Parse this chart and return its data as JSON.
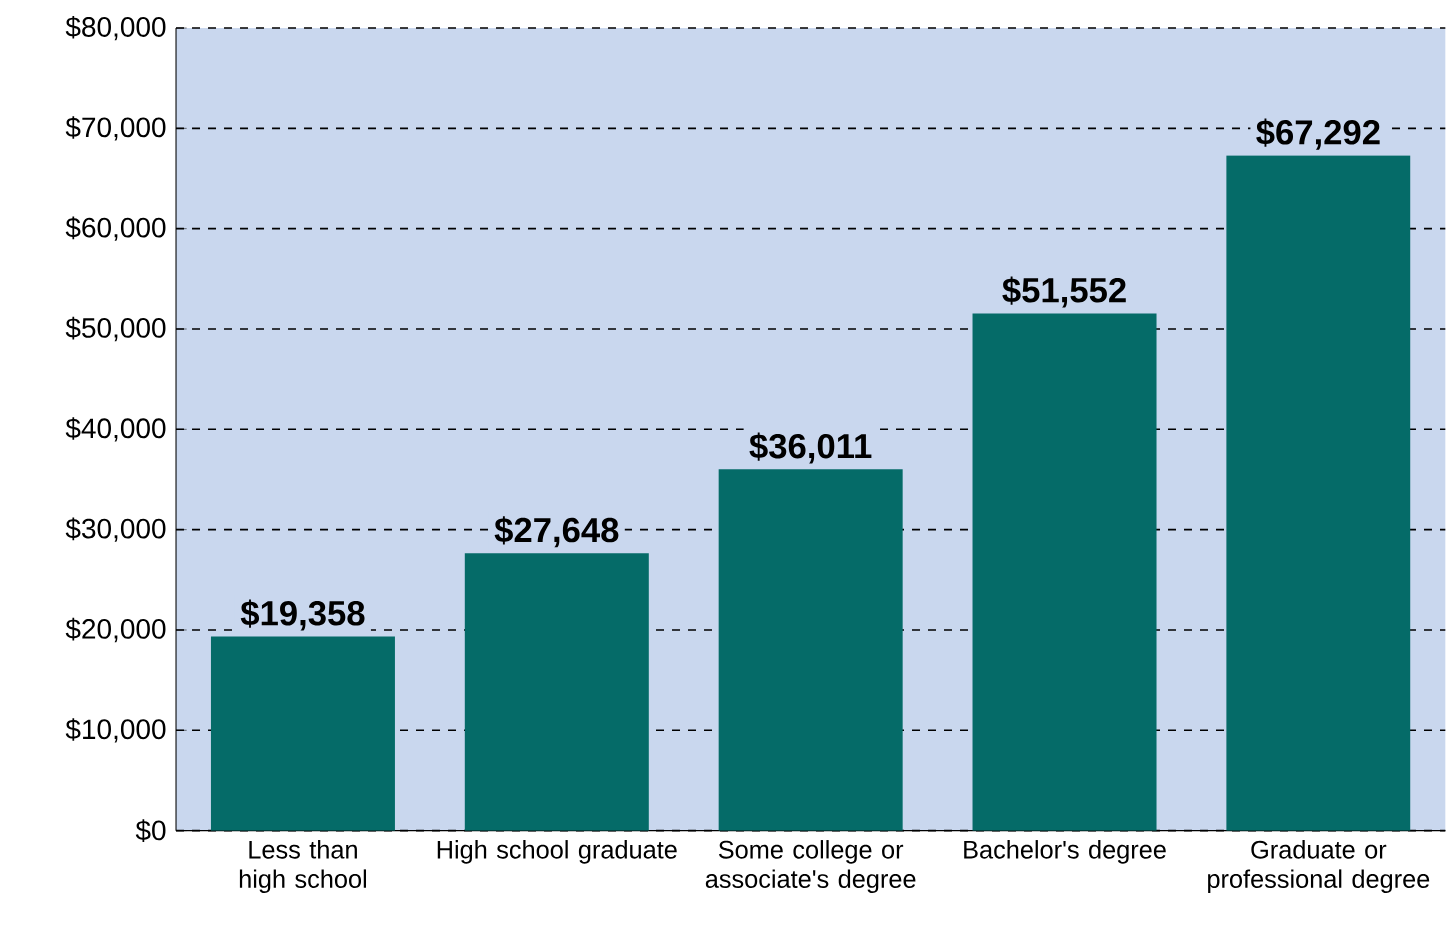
{
  "chart_data": {
    "type": "bar",
    "categories": [
      "Less than high school",
      "High school graduate",
      "Some college or associate's degree",
      "Bachelor's degree",
      "Graduate or professional degree"
    ],
    "values": [
      19358,
      27648,
      36011,
      51552,
      67292
    ],
    "value_labels": [
      "$19,358",
      "$27,648",
      "$36,011",
      "$51,552",
      "$67,292"
    ],
    "color": "#056b68",
    "ylim": [
      0,
      80000
    ],
    "yticks": [
      {
        "value": 0,
        "label": "$0"
      },
      {
        "value": 10000,
        "label": "$10,000"
      },
      {
        "value": 20000,
        "label": "$20,000"
      },
      {
        "value": 30000,
        "label": "$30,000"
      },
      {
        "value": 40000,
        "label": "$40,000"
      },
      {
        "value": 50000,
        "label": "$50,000"
      },
      {
        "value": 60000,
        "label": "$60,000"
      },
      {
        "value": 70000,
        "label": "$70,000"
      },
      {
        "value": 80000,
        "label": "$80,000"
      }
    ],
    "grid": "y",
    "legend": false
  }
}
